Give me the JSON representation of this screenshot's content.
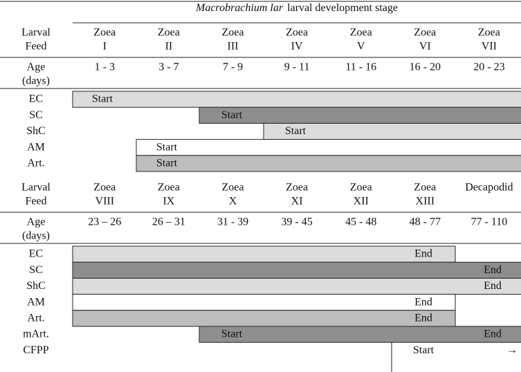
{
  "title": {
    "italic": "Macrobrachium lar",
    "rest": "larval development stage"
  },
  "sections": [
    {
      "stage_label": [
        "Larval",
        "Feed"
      ],
      "stages": [
        [
          "Zoea",
          "I"
        ],
        [
          "Zoea",
          "II"
        ],
        [
          "Zoea",
          "III"
        ],
        [
          "Zoea",
          "IV"
        ],
        [
          "Zoea",
          "V"
        ],
        [
          "Zoea",
          "VI"
        ],
        [
          "Zoea",
          "VII"
        ]
      ],
      "age_label": [
        "Age",
        "(days)"
      ],
      "ages": [
        "1 - 3",
        "3 - 7",
        "7 - 9",
        "9 - 11",
        "11 - 16",
        "16 - 20",
        "20 - 23"
      ],
      "feeds": [
        {
          "name": "EC",
          "labels": [
            "Start"
          ]
        },
        {
          "name": "SC",
          "labels": [
            "Start"
          ]
        },
        {
          "name": "ShC",
          "labels": [
            "Start"
          ]
        },
        {
          "name": "AM",
          "labels": [
            "Start"
          ]
        },
        {
          "name": "Art.",
          "labels": [
            "Start"
          ]
        }
      ]
    },
    {
      "stage_label": [
        "Larval",
        "Feed"
      ],
      "stages": [
        [
          "Zoea",
          "VIII"
        ],
        [
          "Zoea",
          "IX"
        ],
        [
          "Zoea",
          "X"
        ],
        [
          "Zoea",
          "XI"
        ],
        [
          "Zoea",
          "XII"
        ],
        [
          "Zoea",
          "XIII"
        ],
        [
          "Decapodid"
        ]
      ],
      "age_label": [
        "Age",
        "(days)"
      ],
      "ages": [
        "23 – 26",
        "26 – 31",
        "31 - 39",
        "39 - 45",
        "45 - 48",
        "48 - 77",
        "77 - 110"
      ],
      "feeds": [
        {
          "name": "EC",
          "labels": [
            "End"
          ]
        },
        {
          "name": "SC",
          "labels": [
            "End"
          ]
        },
        {
          "name": "ShC",
          "labels": [
            "End"
          ]
        },
        {
          "name": "AM",
          "labels": [
            "End"
          ]
        },
        {
          "name": "Art.",
          "labels": [
            "End"
          ]
        },
        {
          "name": "mArt.",
          "labels": [
            "Start",
            "End"
          ]
        },
        {
          "name": "CFPP",
          "labels": [
            "Start",
            "→"
          ]
        }
      ]
    }
  ]
}
